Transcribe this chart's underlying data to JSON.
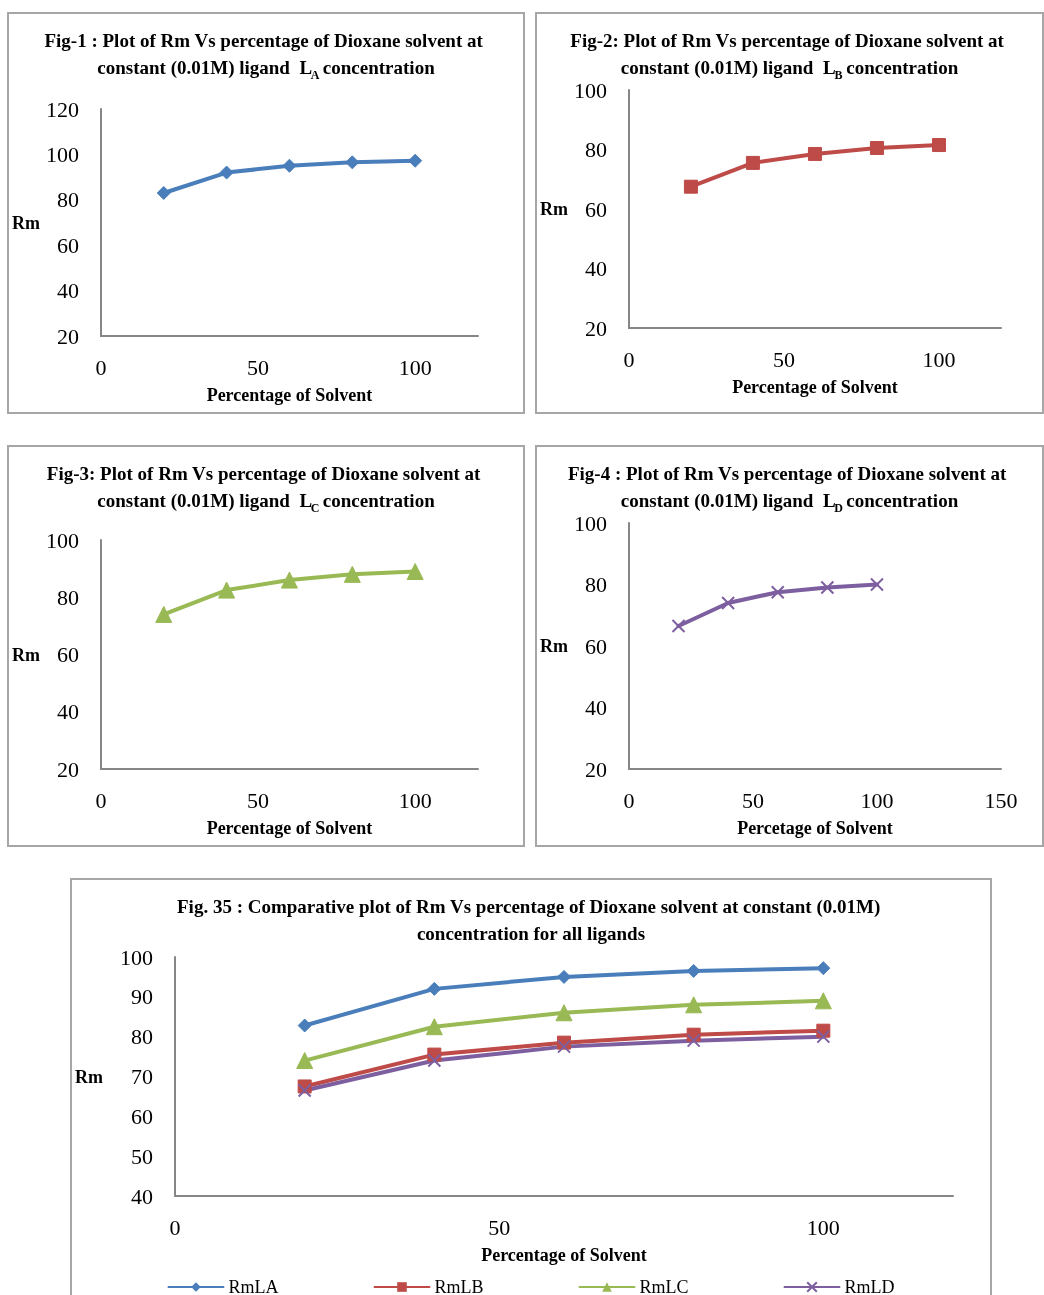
{
  "chart_data": [
    {
      "type": "line",
      "title": "Fig-1 : Plot of Rm Vs percentage of Dioxane solvent at constant (0.01M) ligand  L$_{A}$ concentration",
      "xlabel": "Percentage of Solvent",
      "ylabel": "Rm",
      "x": [
        20,
        40,
        60,
        80,
        100
      ],
      "xlim": [
        0,
        120
      ],
      "xticks": [
        0,
        50,
        100
      ],
      "ylim": [
        20,
        120
      ],
      "yticks": [
        20,
        40,
        60,
        80,
        100,
        120
      ],
      "grid": false,
      "legend": false,
      "marker": "diamond",
      "series": [
        {
          "color": "#4a7ebb",
          "values": [
            83,
            92,
            95,
            96.5,
            97.2
          ]
        }
      ]
    },
    {
      "type": "line",
      "title": "Fig-2: Plot of Rm Vs percentage of Dioxane solvent at constant (0.01M) ligand  L$_{B}$ concentration",
      "xlabel": "Percentage of Solvent",
      "ylabel": "Rm",
      "x": [
        20,
        40,
        60,
        80,
        100
      ],
      "xlim": [
        0,
        120
      ],
      "xticks": [
        0,
        50,
        100
      ],
      "ylim": [
        20,
        100
      ],
      "yticks": [
        20,
        40,
        60,
        80,
        100
      ],
      "grid": false,
      "legend": false,
      "marker": "square",
      "series": [
        {
          "color": "#be4b48",
          "values": [
            67.5,
            75.5,
            78.5,
            80.5,
            81.5
          ]
        }
      ]
    },
    {
      "type": "line",
      "title": "Fig-3: Plot of Rm Vs percentage of Dioxane solvent at constant (0.01M) ligand  L$_{C}$ concentration",
      "xlabel": "Percentage of Solvent",
      "ylabel": "Rm",
      "x": [
        20,
        40,
        60,
        80,
        100
      ],
      "xlim": [
        0,
        120
      ],
      "xticks": [
        0,
        50,
        100
      ],
      "ylim": [
        20,
        100
      ],
      "yticks": [
        20,
        40,
        60,
        80,
        100
      ],
      "grid": false,
      "legend": false,
      "marker": "triangle",
      "series": [
        {
          "color": "#98b954",
          "values": [
            74,
            82.5,
            86,
            88,
            89
          ]
        }
      ]
    },
    {
      "type": "line",
      "title": "Fig-4 : Plot of Rm Vs percentage of Dioxane solvent at constant (0.01M) ligand  L$_{D}$ concentration",
      "xlabel": "Percetage of Solvent",
      "ylabel": "Rm",
      "x": [
        20,
        40,
        60,
        80,
        100
      ],
      "xlim": [
        0,
        150
      ],
      "xticks": [
        0,
        50,
        100,
        150
      ],
      "ylim": [
        20,
        100
      ],
      "yticks": [
        20,
        40,
        60,
        80,
        100
      ],
      "grid": false,
      "legend": false,
      "marker": "cross",
      "series": [
        {
          "color": "#7d5fa0",
          "values": [
            66.5,
            74,
            77.5,
            79,
            80
          ]
        }
      ]
    },
    {
      "type": "line",
      "title": "Fig. 35 : Comparative plot of Rm Vs percentage of Dioxane solvent at constant (0.01M) concentration for all ligands",
      "xlabel": "Percentage of Solvent",
      "ylabel": "Rm",
      "x": [
        20,
        40,
        60,
        80,
        100
      ],
      "xlim": [
        0,
        120
      ],
      "xticks": [
        0,
        50,
        100
      ],
      "ylim": [
        40,
        100
      ],
      "yticks": [
        40,
        50,
        60,
        70,
        80,
        90,
        100
      ],
      "grid": false,
      "legend": "bottom",
      "series": [
        {
          "name": "RmLA",
          "color": "#4a7ebb",
          "marker": "diamond",
          "values": [
            82.8,
            92,
            95,
            96.5,
            97.2
          ]
        },
        {
          "name": "RmLB",
          "color": "#be4b48",
          "marker": "square",
          "values": [
            67.5,
            75.5,
            78.5,
            80.5,
            81.5
          ]
        },
        {
          "name": "RmLC",
          "color": "#98b954",
          "marker": "triangle",
          "values": [
            74,
            82.5,
            86,
            88,
            89
          ]
        },
        {
          "name": "RmLD",
          "color": "#7d5fa0",
          "marker": "cross",
          "values": [
            66.5,
            74,
            77.5,
            79,
            80
          ]
        }
      ]
    }
  ]
}
